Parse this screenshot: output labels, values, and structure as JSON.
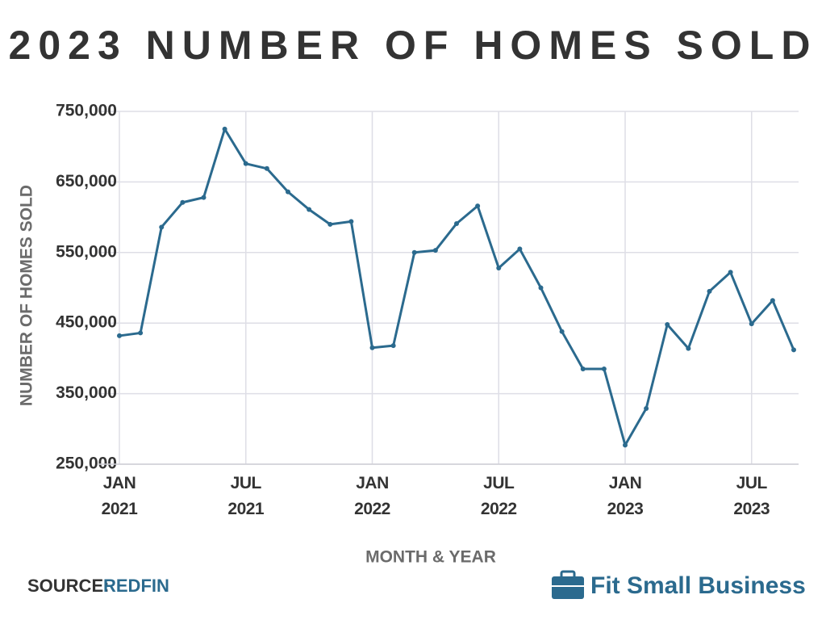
{
  "chart_data": {
    "type": "line",
    "title": "2023 NUMBER OF HOMES SOLD",
    "y_label": "NUMBER OF HOMES SOLD",
    "x_label": "MONTH & YEAR",
    "source_label": "SOURCE:",
    "source": "REDFIN",
    "brand": "Fit Small Business",
    "categories": [
      "JAN 2021",
      null,
      null,
      null,
      null,
      null,
      "JUL 2021",
      null,
      null,
      null,
      null,
      null,
      "JAN 2022",
      null,
      null,
      null,
      null,
      null,
      "JUL 2022",
      null,
      null,
      null,
      null,
      null,
      "JAN 2023",
      null,
      null,
      null,
      null,
      null,
      "JUL 2023",
      null,
      null
    ],
    "series": [
      {
        "name": "Homes sold",
        "color": "#2b6a8e",
        "values": [
          432000,
          436000,
          586000,
          621000,
          628000,
          725000,
          676000,
          669000,
          636000,
          611000,
          590000,
          594000,
          415000,
          418000,
          550000,
          553000,
          591000,
          616000,
          528000,
          555000,
          500000,
          438000,
          385000,
          385000,
          277000,
          329000,
          448000,
          414000,
          495000,
          522000,
          449000,
          482000,
          412000
        ]
      }
    ],
    "ylim": [
      250000,
      750000
    ],
    "yticks": [
      {
        "value": 250000,
        "label": "250,000"
      },
      {
        "value": 350000,
        "label": "350,000"
      },
      {
        "value": 450000,
        "label": "450,000"
      },
      {
        "value": 550000,
        "label": "550,000"
      },
      {
        "value": 650000,
        "label": "650,000"
      },
      {
        "value": 750000,
        "label": "750,000"
      }
    ],
    "grid": true
  }
}
